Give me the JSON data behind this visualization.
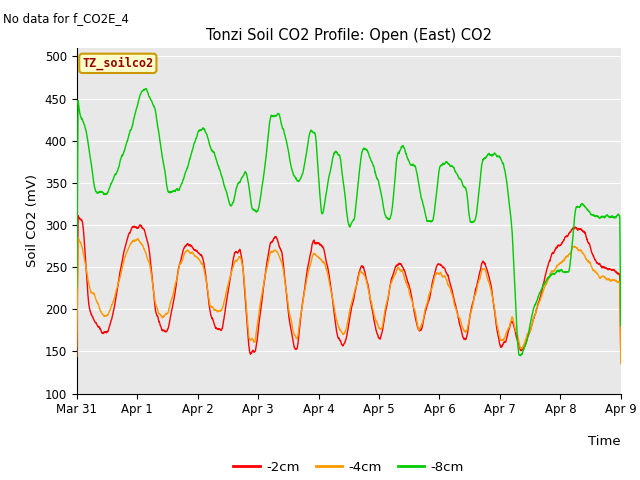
{
  "title": "Tonzi Soil CO2 Profile: Open (East) CO2",
  "subtitle": "No data for f_CO2E_4",
  "ylabel": "Soil CO2 (mV)",
  "xlabel": "Time",
  "tag_label": "TZ_soilco2",
  "legend_labels": [
    "-2cm",
    "-4cm",
    "-8cm"
  ],
  "legend_colors": [
    "#ff0000",
    "#ff9900",
    "#00cc00"
  ],
  "line_colors": [
    "#ff0000",
    "#ff9900",
    "#00cc00"
  ],
  "ylim": [
    100,
    510
  ],
  "yticks": [
    100,
    150,
    200,
    250,
    300,
    350,
    400,
    450,
    500
  ],
  "xtick_labels": [
    "Mar 31",
    "Apr 1",
    "Apr 2",
    "Apr 3",
    "Apr 4",
    "Apr 5",
    "Apr 6",
    "Apr 7",
    "Apr 8",
    "Apr 9"
  ],
  "bg_color": "#e8e8e8",
  "fig_color": "#ffffff",
  "tag_bg": "#ffffcc",
  "tag_border": "#cc9900"
}
